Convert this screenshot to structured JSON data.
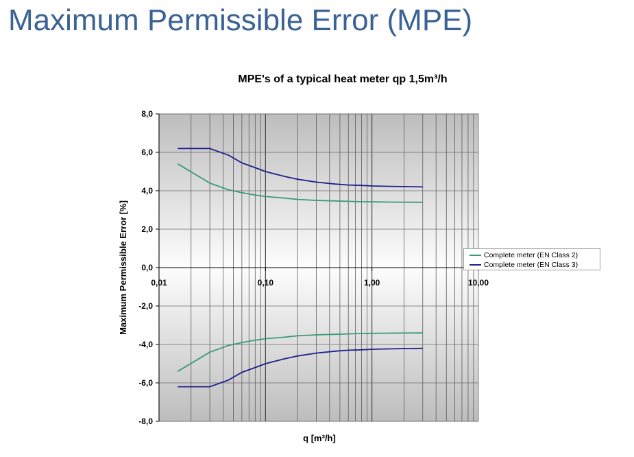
{
  "page": {
    "title": "Maximum Permissible Error (MPE)"
  },
  "chart_data": {
    "type": "line",
    "title": "MPE's of a typical heat meter qp 1,5m³/h",
    "xlabel": "q [m³/h]",
    "ylabel": "Maximum Permissible Error [%]",
    "xscale": "log",
    "xlim": [
      0.01,
      10
    ],
    "ylim": [
      -8,
      8
    ],
    "xticks": [
      0.01,
      0.1,
      1,
      10
    ],
    "xtick_labels": [
      "0,01",
      "0,10",
      "1,00",
      "10,00"
    ],
    "yticks": [
      8,
      6,
      4,
      2,
      0,
      -2,
      -4,
      -6,
      -8
    ],
    "ytick_labels": [
      "8,0",
      "6,0",
      "4,0",
      "2,0",
      "0,0",
      "-2,0",
      "-4,0",
      "-6,0",
      "-8,0"
    ],
    "grid": true,
    "legend_position": "right",
    "series": [
      {
        "name": "Complete meter (EN Class 2)",
        "color": "#3a9b74",
        "x": [
          0.015,
          0.03,
          0.045,
          0.06,
          0.08,
          0.1,
          0.15,
          0.2,
          0.3,
          0.45,
          0.6,
          0.8,
          1.0,
          1.5,
          3.0
        ],
        "upper": [
          5.4,
          4.4,
          4.05,
          3.9,
          3.78,
          3.7,
          3.62,
          3.55,
          3.5,
          3.47,
          3.45,
          3.43,
          3.42,
          3.41,
          3.4
        ],
        "lower": [
          -5.4,
          -4.4,
          -4.05,
          -3.9,
          -3.78,
          -3.7,
          -3.62,
          -3.55,
          -3.5,
          -3.47,
          -3.45,
          -3.43,
          -3.42,
          -3.41,
          -3.4
        ]
      },
      {
        "name": "Complete meter (EN Class 3)",
        "color": "#1c1f8c",
        "x": [
          0.015,
          0.03,
          0.045,
          0.06,
          0.08,
          0.1,
          0.15,
          0.2,
          0.3,
          0.45,
          0.6,
          0.8,
          1.0,
          1.5,
          3.0
        ],
        "upper": [
          6.2,
          6.2,
          5.85,
          5.45,
          5.2,
          5.0,
          4.75,
          4.6,
          4.45,
          4.35,
          4.3,
          4.28,
          4.25,
          4.23,
          4.2
        ],
        "lower": [
          -6.2,
          -6.2,
          -5.85,
          -5.45,
          -5.2,
          -5.0,
          -4.75,
          -4.6,
          -4.45,
          -4.35,
          -4.3,
          -4.28,
          -4.25,
          -4.23,
          -4.2
        ]
      }
    ]
  }
}
